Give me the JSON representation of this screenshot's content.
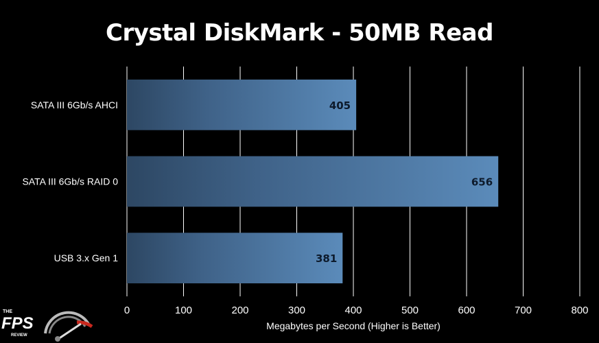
{
  "chart_data": {
    "type": "bar",
    "orientation": "horizontal",
    "title": "Crystal DiskMark - 50MB Read",
    "categories": [
      "SATA III 6Gb/s AHCI",
      "SATA III 6Gb/s RAID 0",
      "USB 3.x Gen 1"
    ],
    "values": [
      405,
      656,
      381
    ],
    "data_labels": [
      "405",
      "656",
      "381"
    ],
    "xlabel": "Megabytes per Second (Higher is Better)",
    "ylabel": "",
    "xlim": [
      0,
      800
    ],
    "x_ticks": [
      0,
      100,
      200,
      300,
      400,
      500,
      600,
      700,
      800
    ],
    "grid": "vertical",
    "legend": "none"
  },
  "colors": {
    "background": "#000000",
    "bar_dark": "#2f4a66",
    "bar_light": "#5b8ab8",
    "gridline": "#ffffff",
    "text": "#ffffff",
    "logo_red": "#c8281e"
  },
  "logo": {
    "top": "THE",
    "main": "FPS",
    "bottom": "REVIEW"
  }
}
